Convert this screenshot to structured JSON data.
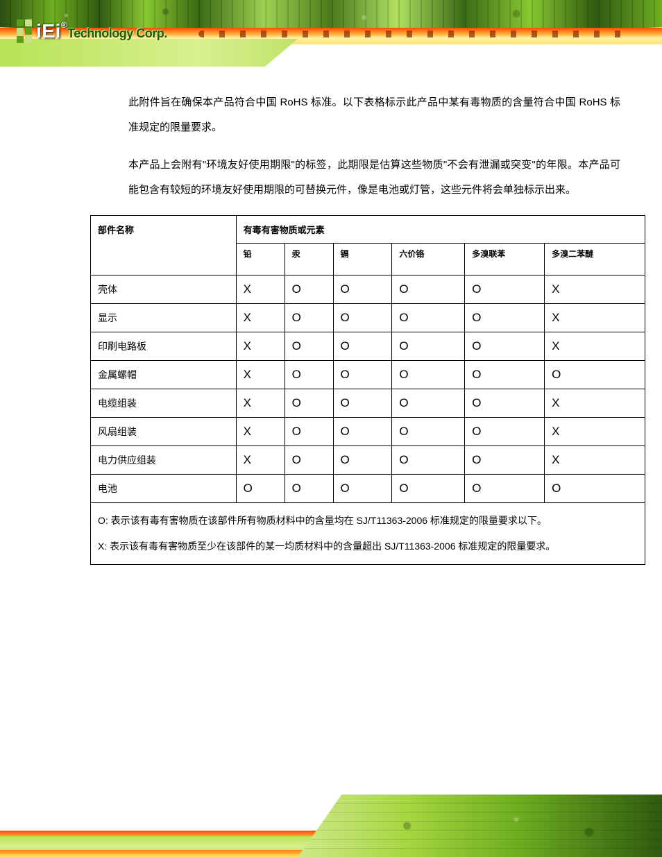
{
  "logo": {
    "brand": "iEi",
    "reg": "®",
    "tagline": "Technology Corp."
  },
  "paragraphs": {
    "p1": "此附件旨在确保本产品符合中国 RoHS 标准。以下表格标示此产品中某有毒物质的含量符合中国 RoHS 标准规定的限量要求。",
    "p2": "本产品上会附有\"环境友好使用期限\"的标签，此期限是估算这些物质\"不会有泄漏或突变\"的年限。本产品可能包含有较短的环境友好使用期限的可替换元件，像是电池或灯管，这些元件将会单独标示出来。"
  },
  "table": {
    "header_part": "部件名称",
    "header_sub": "有毒有害物质或元素",
    "columns": [
      "铅",
      "汞",
      "镉",
      "六价铬",
      "多溴联苯",
      "多溴二苯醚"
    ],
    "col_widths": [
      "210px",
      "70px",
      "70px",
      "85px",
      "105px",
      "115px",
      "145px"
    ],
    "rows": [
      {
        "name": "壳体",
        "vals": [
          "X",
          "O",
          "O",
          "O",
          "O",
          "X"
        ]
      },
      {
        "name": "显示",
        "vals": [
          "X",
          "O",
          "O",
          "O",
          "O",
          "X"
        ]
      },
      {
        "name": "印刷电路板",
        "vals": [
          "X",
          "O",
          "O",
          "O",
          "O",
          "X"
        ]
      },
      {
        "name": "金属螺帽",
        "vals": [
          "X",
          "O",
          "O",
          "O",
          "O",
          "O"
        ]
      },
      {
        "name": "电缆组装",
        "vals": [
          "X",
          "O",
          "O",
          "O",
          "O",
          "X"
        ]
      },
      {
        "name": "风扇组装",
        "vals": [
          "X",
          "O",
          "O",
          "O",
          "O",
          "X"
        ]
      },
      {
        "name": "电力供应组装",
        "vals": [
          "X",
          "O",
          "O",
          "O",
          "O",
          "X"
        ]
      },
      {
        "name": "电池",
        "vals": [
          "O",
          "O",
          "O",
          "O",
          "O",
          "O"
        ]
      }
    ],
    "legend_o": "O:  表示该有毒有害物质在该部件所有物质材料中的含量均在 SJ/T11363-2006  标准规定的限量要求以下。",
    "legend_x": "X:  表示该有毒有害物质至少在该部件的某一均质材料中的含量超出 SJ/T11363-2006  标准规定的限量要求。"
  },
  "colors": {
    "text": "#000000",
    "border": "#000000",
    "bg": "#ffffff",
    "green_dark": "#2f5a10",
    "green_mid": "#6fae20",
    "green_light": "#b7e356",
    "orange": "#ff4a00",
    "yellow": "#ffe070"
  },
  "typography": {
    "body_fontsize_pt": 11,
    "body_lineheight": 2.4,
    "table_fontsize_pt": 10,
    "mark_fontsize_pt": 13,
    "font_family": "SimSun / Microsoft YaHei"
  }
}
